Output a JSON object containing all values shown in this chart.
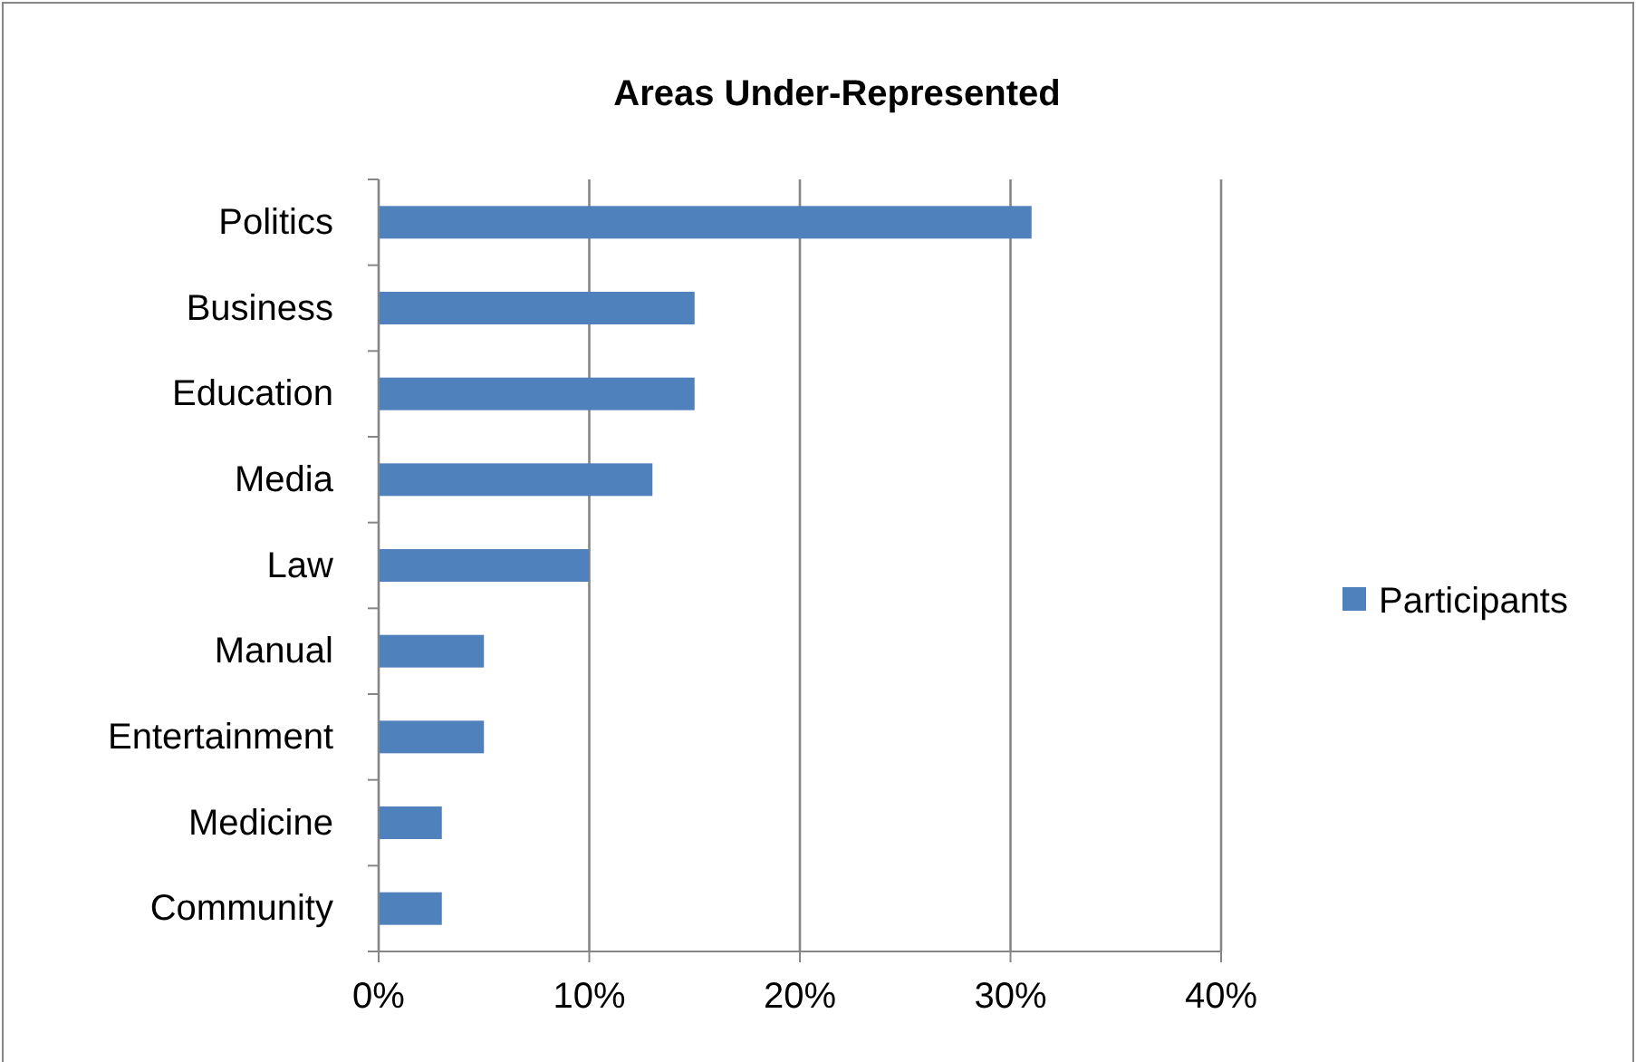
{
  "chart_data": {
    "type": "bar",
    "orientation": "horizontal",
    "title": "Areas Under-Represented",
    "categories": [
      "Politics",
      "Business",
      "Education",
      "Media",
      "Law",
      "Manual ",
      "Entertainment",
      "Medicine",
      "Community"
    ],
    "series": [
      {
        "name": "Participants",
        "color": "#4f81bd",
        "values": [
          31,
          15,
          15,
          13,
          10,
          5,
          5,
          3,
          3
        ]
      }
    ],
    "xlim": [
      0,
      40
    ],
    "xticks": [
      {
        "value": 0,
        "label": "0%"
      },
      {
        "value": 10,
        "label": "10%"
      },
      {
        "value": 20,
        "label": "20%"
      },
      {
        "value": 30,
        "label": "30%"
      },
      {
        "value": 40,
        "label": "40%"
      }
    ],
    "grid": "x",
    "legend": "right"
  }
}
